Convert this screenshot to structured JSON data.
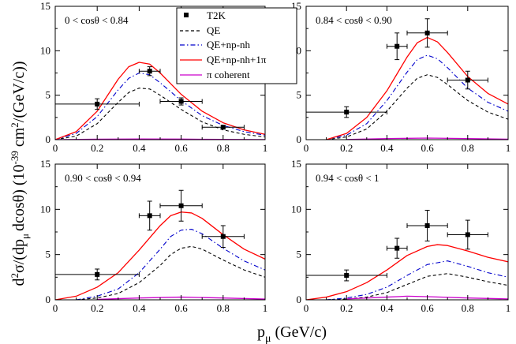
{
  "axes": {
    "ylabel": "d²σ/(dpμ dcosθ) (10⁻³⁹ cm²/(GeV/c))",
    "ylabel_parts": {
      "prefix": "d",
      "sup2": "2",
      "sigma": "σ/(dp",
      "mu": "μ",
      "mid": "dcosθ) (10",
      "exp": "-39",
      "cm": " cm",
      "sup2b": "2",
      "end": "/(GeV/c))"
    },
    "xlabel_parts": {
      "p": "p",
      "mu": "μ",
      "unit": " (GeV/c)"
    },
    "xlabel": "pμ (GeV/c)",
    "x_ticks": [
      "0",
      "0.2",
      "0.4",
      "0.6",
      "0.8",
      "1"
    ],
    "y_ticks": [
      "0",
      "5",
      "10",
      "15"
    ]
  },
  "legend": {
    "items": [
      {
        "label": "T2K",
        "style": "marker",
        "color": "#000000"
      },
      {
        "label": "QE",
        "style": "dashed",
        "color": "#000000"
      },
      {
        "label": "QE+np-nh",
        "style": "dashdot",
        "color": "#0000cc"
      },
      {
        "label": "QE+np-nh+1π",
        "style": "solid",
        "color": "#ff0000"
      },
      {
        "label": "π coherent",
        "style": "solid",
        "color": "#cc00cc"
      }
    ]
  },
  "chart_data": [
    {
      "type": "line",
      "title": "0 < cosθ < 0.84",
      "xlim": [
        0,
        1
      ],
      "ylim": [
        0,
        15
      ],
      "data_points": [
        {
          "x": 0.2,
          "y": 4.0,
          "xerr": 0.2,
          "yerr": 0.6
        },
        {
          "x": 0.45,
          "y": 7.7,
          "xerr": 0.05,
          "yerr": 0.5
        },
        {
          "x": 0.6,
          "y": 4.3,
          "xerr": 0.1,
          "yerr": 0.4
        },
        {
          "x": 0.8,
          "y": 1.4,
          "xerr": 0.1,
          "yerr": 0.2
        }
      ],
      "series": [
        {
          "name": "QE",
          "x": [
            0,
            0.1,
            0.2,
            0.3,
            0.35,
            0.4,
            0.45,
            0.5,
            0.55,
            0.6,
            0.7,
            0.8,
            0.9,
            1.0
          ],
          "y": [
            0,
            0.4,
            1.8,
            4.2,
            5.3,
            5.8,
            5.7,
            5.0,
            4.2,
            3.4,
            2.0,
            1.1,
            0.6,
            0.3
          ]
        },
        {
          "name": "QE+np-nh",
          "x": [
            0,
            0.1,
            0.2,
            0.3,
            0.35,
            0.4,
            0.45,
            0.5,
            0.55,
            0.6,
            0.7,
            0.8,
            0.9,
            1.0
          ],
          "y": [
            0,
            0.7,
            2.6,
            5.6,
            6.9,
            7.5,
            7.3,
            6.4,
            5.4,
            4.4,
            2.7,
            1.6,
            0.9,
            0.5
          ]
        },
        {
          "name": "QE+np-nh+1π",
          "x": [
            0,
            0.1,
            0.2,
            0.3,
            0.35,
            0.4,
            0.45,
            0.5,
            0.55,
            0.6,
            0.7,
            0.8,
            0.9,
            1.0
          ],
          "y": [
            0,
            0.9,
            3.2,
            6.8,
            8.2,
            8.7,
            8.5,
            7.5,
            6.3,
            5.1,
            3.2,
            1.9,
            1.1,
            0.6
          ]
        },
        {
          "name": "π coherent",
          "x": [
            0,
            0.2,
            0.4,
            0.6,
            0.8,
            1.0
          ],
          "y": [
            0,
            0.05,
            0.08,
            0.06,
            0.03,
            0.01
          ]
        }
      ]
    },
    {
      "type": "line",
      "title": "0.84 < cosθ < 0.90",
      "xlim": [
        0,
        1
      ],
      "ylim": [
        0,
        15
      ],
      "data_points": [
        {
          "x": 0.2,
          "y": 3.1,
          "xerr": 0.2,
          "yerr": 0.6
        },
        {
          "x": 0.45,
          "y": 10.5,
          "xerr": 0.05,
          "yerr": 1.5
        },
        {
          "x": 0.6,
          "y": 12.0,
          "xerr": 0.1,
          "yerr": 1.6
        },
        {
          "x": 0.8,
          "y": 6.7,
          "xerr": 0.1,
          "yerr": 1.0
        }
      ],
      "series": [
        {
          "name": "QE",
          "x": [
            0.1,
            0.2,
            0.3,
            0.4,
            0.5,
            0.55,
            0.6,
            0.65,
            0.7,
            0.8,
            0.9,
            1.0
          ],
          "y": [
            0,
            0.3,
            1.2,
            3.2,
            5.8,
            6.9,
            7.3,
            7.0,
            6.2,
            4.4,
            3.1,
            2.3
          ]
        },
        {
          "name": "QE+np-nh",
          "x": [
            0.1,
            0.2,
            0.3,
            0.4,
            0.5,
            0.55,
            0.6,
            0.65,
            0.7,
            0.8,
            0.9,
            1.0
          ],
          "y": [
            0,
            0.5,
            1.8,
            4.4,
            7.6,
            9.0,
            9.5,
            9.1,
            8.1,
            5.8,
            4.2,
            3.2
          ]
        },
        {
          "name": "QE+np-nh+1π",
          "x": [
            0.1,
            0.2,
            0.3,
            0.4,
            0.5,
            0.55,
            0.6,
            0.65,
            0.7,
            0.8,
            0.9,
            1.0
          ],
          "y": [
            0,
            0.7,
            2.5,
            5.5,
            9.3,
            10.9,
            11.5,
            11.0,
            9.8,
            7.1,
            5.2,
            4.0
          ]
        },
        {
          "name": "π coherent",
          "x": [
            0.2,
            0.4,
            0.6,
            0.8,
            1.0
          ],
          "y": [
            0.02,
            0.12,
            0.18,
            0.12,
            0.05
          ]
        }
      ]
    },
    {
      "type": "line",
      "title": "0.90 < cosθ < 0.94",
      "xlim": [
        0,
        1
      ],
      "ylim": [
        0,
        15
      ],
      "data_points": [
        {
          "x": 0.2,
          "y": 2.8,
          "xerr": 0.2,
          "yerr": 0.6
        },
        {
          "x": 0.45,
          "y": 9.3,
          "xerr": 0.05,
          "yerr": 1.6
        },
        {
          "x": 0.6,
          "y": 10.4,
          "xerr": 0.1,
          "yerr": 1.7
        },
        {
          "x": 0.8,
          "y": 7.0,
          "xerr": 0.1,
          "yerr": 1.2
        }
      ],
      "series": [
        {
          "name": "QE",
          "x": [
            0.1,
            0.2,
            0.3,
            0.4,
            0.5,
            0.55,
            0.6,
            0.65,
            0.7,
            0.8,
            0.9,
            1.0
          ],
          "y": [
            0,
            0.2,
            0.7,
            1.9,
            3.8,
            5.0,
            5.7,
            5.9,
            5.6,
            4.4,
            3.3,
            2.5
          ]
        },
        {
          "name": "QE+np-nh",
          "x": [
            0.1,
            0.2,
            0.3,
            0.4,
            0.5,
            0.55,
            0.6,
            0.65,
            0.7,
            0.8,
            0.9,
            1.0
          ],
          "y": [
            0,
            0.4,
            1.2,
            3.0,
            5.6,
            7.0,
            7.7,
            7.8,
            7.3,
            5.7,
            4.3,
            3.3
          ]
        },
        {
          "name": "QE+np-nh+1π",
          "x": [
            0,
            0.1,
            0.2,
            0.3,
            0.4,
            0.5,
            0.55,
            0.6,
            0.65,
            0.7,
            0.8,
            0.9,
            1.0
          ],
          "y": [
            0,
            0.4,
            1.4,
            3.0,
            5.5,
            8.2,
            9.3,
            9.7,
            9.6,
            9.0,
            7.2,
            5.6,
            4.5
          ]
        },
        {
          "name": "π coherent",
          "x": [
            0.2,
            0.4,
            0.6,
            0.8,
            1.0
          ],
          "y": [
            0.05,
            0.2,
            0.3,
            0.2,
            0.08
          ]
        }
      ]
    },
    {
      "type": "line",
      "title": "0.94 < cosθ < 1",
      "xlim": [
        0,
        1
      ],
      "ylim": [
        0,
        15
      ],
      "data_points": [
        {
          "x": 0.2,
          "y": 2.7,
          "xerr": 0.2,
          "yerr": 0.6
        },
        {
          "x": 0.45,
          "y": 5.7,
          "xerr": 0.05,
          "yerr": 1.1
        },
        {
          "x": 0.6,
          "y": 8.2,
          "xerr": 0.1,
          "yerr": 1.7
        },
        {
          "x": 0.8,
          "y": 7.2,
          "xerr": 0.1,
          "yerr": 1.6
        }
      ],
      "series": [
        {
          "name": "QE",
          "x": [
            0.1,
            0.2,
            0.3,
            0.4,
            0.5,
            0.6,
            0.7,
            0.8,
            0.9,
            1.0
          ],
          "y": [
            0,
            0.1,
            0.3,
            0.8,
            1.7,
            2.6,
            2.9,
            2.5,
            2.0,
            1.6
          ]
        },
        {
          "name": "QE+np-nh",
          "x": [
            0.1,
            0.2,
            0.3,
            0.4,
            0.5,
            0.6,
            0.7,
            0.8,
            0.9,
            1.0
          ],
          "y": [
            0,
            0.2,
            0.6,
            1.4,
            2.7,
            3.9,
            4.3,
            3.7,
            3.0,
            2.5
          ]
        },
        {
          "name": "QE+np-nh+1π",
          "x": [
            0,
            0.1,
            0.2,
            0.3,
            0.4,
            0.5,
            0.6,
            0.65,
            0.7,
            0.8,
            0.9,
            1.0
          ],
          "y": [
            0,
            0.3,
            0.9,
            1.9,
            3.3,
            4.9,
            5.9,
            6.1,
            6.0,
            5.4,
            4.7,
            4.2
          ]
        },
        {
          "name": "π coherent",
          "x": [
            0.2,
            0.4,
            0.5,
            0.6,
            0.8,
            1.0
          ],
          "y": [
            0.1,
            0.3,
            0.4,
            0.35,
            0.2,
            0.1
          ]
        }
      ]
    }
  ]
}
